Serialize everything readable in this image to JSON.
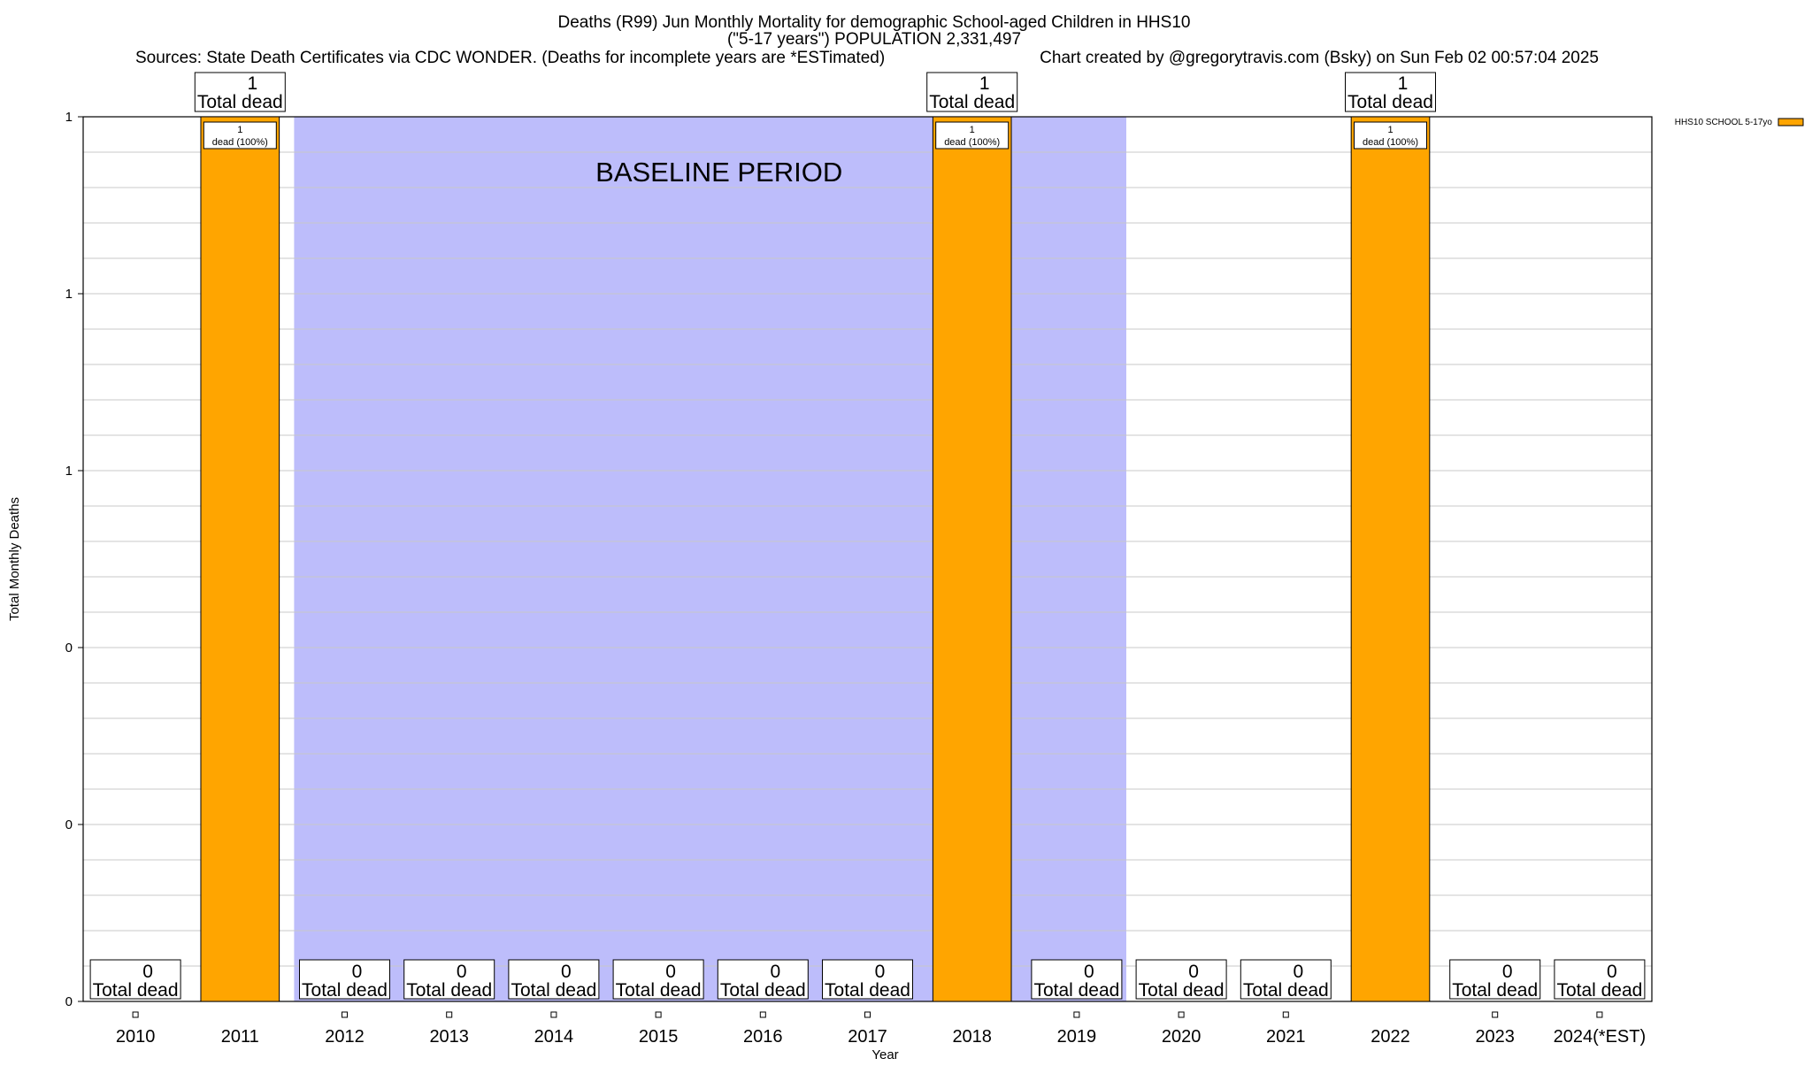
{
  "chart_data": {
    "type": "bar",
    "title_lines": [
      "Deaths (R99) Jun Monthly Mortality for demographic School-aged Children in HHS10",
      "(\"5-17 years\") POPULATION 2,331,497"
    ],
    "sources_text": "Sources: State Death Certificates via CDC WONDER. (Deaths for incomplete years are *ESTimated)",
    "credit_text": "Chart created by @gregorytravis.com (Bsky) on Sun Feb 02 00:57:04 2025",
    "xlabel": "Year",
    "ylabel": "Total Monthly Deaths",
    "categories": [
      "2010",
      "2011",
      "2012",
      "2013",
      "2014",
      "2015",
      "2016",
      "2017",
      "2018",
      "2019",
      "2020",
      "2021",
      "2022",
      "2023",
      "2024(*EST)"
    ],
    "series": [
      {
        "name": "HHS10 SCHOOL 5-17yo",
        "values": [
          0,
          1,
          0,
          0,
          0,
          0,
          0,
          0,
          1,
          0,
          0,
          0,
          1,
          0,
          0
        ],
        "color": "#FFA500"
      }
    ],
    "total_label": "Total dead",
    "segment_label": "dead (100%)",
    "ylim": [
      0,
      1
    ],
    "yticks": [
      {
        "value": 0,
        "label": "0"
      },
      {
        "value": 0.2,
        "label": "0"
      },
      {
        "value": 0.4,
        "label": "0"
      },
      {
        "value": 0.6,
        "label": "1"
      },
      {
        "value": 0.8,
        "label": "1"
      },
      {
        "value": 1.0,
        "label": "1"
      }
    ],
    "baseline": {
      "label": "BASELINE PERIOD",
      "from": "2012",
      "to": "2019",
      "color": "#BDBDFB"
    },
    "grid": true,
    "legend": "top-right"
  }
}
